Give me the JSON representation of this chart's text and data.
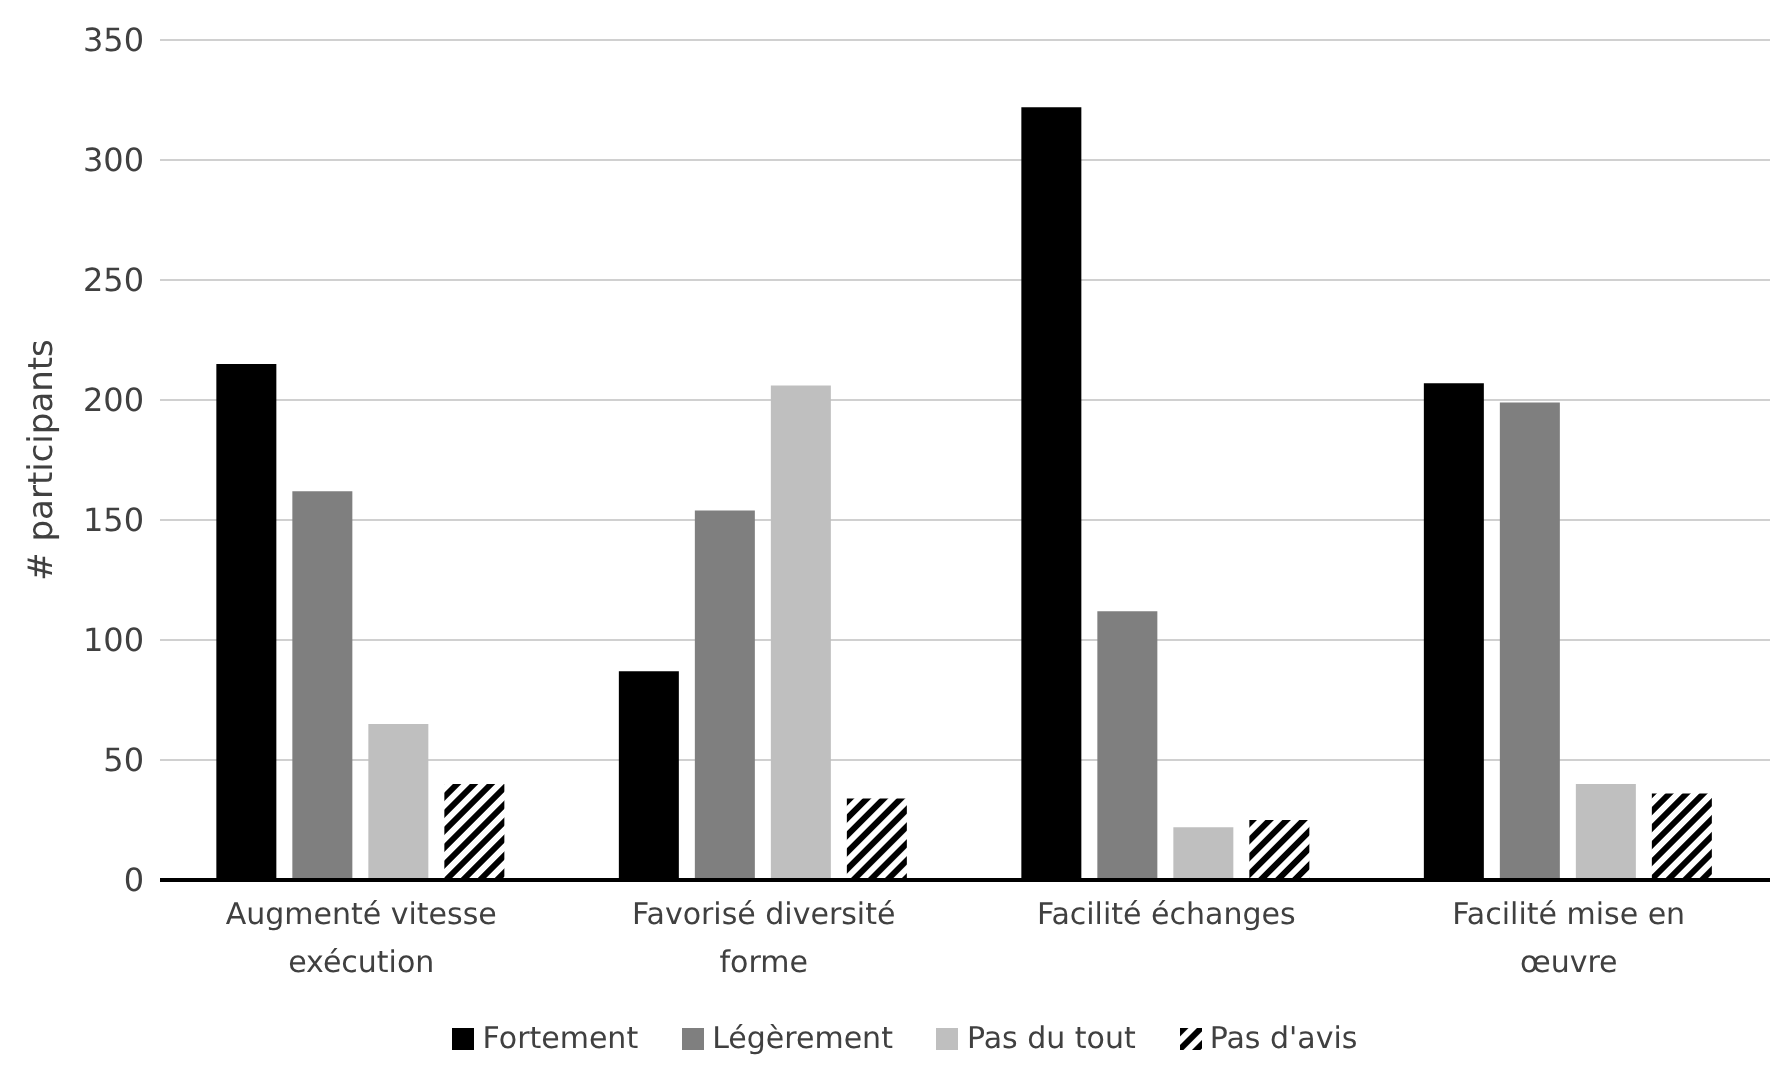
{
  "chart_data": {
    "type": "bar",
    "ylabel": "# participants",
    "categories": [
      "Augmenté vitesse exécution",
      "Favorisé diversité forme",
      "Facilité échanges",
      "Facilité mise en œuvre"
    ],
    "series": [
      {
        "name": "Fortement",
        "color": "#000000",
        "values": [
          215,
          87,
          322,
          207
        ]
      },
      {
        "name": "Légèrement",
        "color": "#7f7f7f",
        "values": [
          162,
          154,
          112,
          199
        ]
      },
      {
        "name": "Pas du tout",
        "color": "#bfbfbf",
        "values": [
          65,
          206,
          22,
          40
        ]
      },
      {
        "name": "Pas d'avis",
        "color": "#000000",
        "values": [
          40,
          34,
          25,
          36
        ]
      }
    ],
    "ylim": [
      0,
      350
    ],
    "yticks": [
      0,
      50,
      100,
      150,
      200,
      250,
      300,
      350
    ],
    "grid": "y",
    "legend": "bottom"
  }
}
